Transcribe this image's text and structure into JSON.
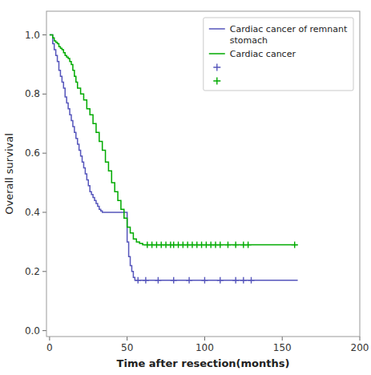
{
  "chart_data": {
    "type": "step",
    "xlabel": "Time after resection(months)",
    "ylabel": "Overall survival",
    "xlim": [
      -2,
      200
    ],
    "ylim": [
      -0.02,
      1.08
    ],
    "xticks": [
      0,
      50,
      100,
      150,
      200
    ],
    "yticks": [
      {
        "value": 0.0,
        "label": "0.0"
      },
      0.2,
      0.4,
      0.6,
      0.8,
      {
        "value": 1.0,
        "label": "1.0"
      }
    ],
    "grid": false,
    "legend": "upper right",
    "series": [
      {
        "name": "Cardiac cancer of remnant\nstomach",
        "type": "step",
        "color": "#5555bb",
        "x": [
          0,
          2,
          3,
          4,
          5,
          6,
          7,
          8,
          9,
          10,
          11,
          12,
          13,
          14,
          15,
          16,
          17,
          18,
          19,
          20,
          21,
          22,
          23,
          24,
          25,
          26,
          27,
          28,
          29,
          30,
          31,
          32,
          33,
          34,
          35,
          36,
          37,
          38,
          39,
          40,
          41,
          42,
          43,
          44,
          45,
          46,
          47,
          48,
          49,
          50,
          51,
          52,
          53,
          54,
          55,
          56,
          160
        ],
        "values": [
          1.0,
          0.97,
          0.95,
          0.93,
          0.91,
          0.88,
          0.86,
          0.84,
          0.82,
          0.79,
          0.77,
          0.75,
          0.73,
          0.71,
          0.69,
          0.67,
          0.65,
          0.63,
          0.61,
          0.59,
          0.57,
          0.55,
          0.53,
          0.51,
          0.49,
          0.47,
          0.46,
          0.45,
          0.44,
          0.43,
          0.42,
          0.41,
          0.405,
          0.4,
          0.4,
          0.4,
          0.4,
          0.4,
          0.4,
          0.4,
          0.4,
          0.4,
          0.4,
          0.4,
          0.4,
          0.4,
          0.4,
          0.4,
          0.4,
          0.3,
          0.25,
          0.22,
          0.2,
          0.18,
          0.17,
          0.17,
          0.17
        ]
      },
      {
        "name": "Cardiac cancer",
        "type": "step",
        "color": "#00aa00",
        "x": [
          0,
          2,
          3,
          4,
          5,
          6,
          7,
          8,
          9,
          10,
          11,
          12,
          13,
          14,
          15,
          16,
          17,
          18,
          20,
          22,
          24,
          26,
          28,
          30,
          32,
          34,
          36,
          38,
          40,
          42,
          44,
          46,
          48,
          50,
          52,
          54,
          56,
          58,
          60,
          62,
          160
        ],
        "values": [
          1.0,
          0.99,
          0.98,
          0.975,
          0.97,
          0.96,
          0.955,
          0.95,
          0.94,
          0.93,
          0.925,
          0.92,
          0.91,
          0.9,
          0.88,
          0.86,
          0.84,
          0.82,
          0.8,
          0.78,
          0.75,
          0.73,
          0.7,
          0.67,
          0.64,
          0.61,
          0.57,
          0.54,
          0.5,
          0.47,
          0.44,
          0.41,
          0.38,
          0.35,
          0.33,
          0.31,
          0.3,
          0.295,
          0.29,
          0.29,
          0.29
        ]
      },
      {
        "type": "scatter",
        "marker": "plus",
        "color": "#5555bb",
        "x": [
          57,
          62,
          70,
          80,
          90,
          100,
          110,
          120,
          125,
          130
        ],
        "values": [
          0.17,
          0.17,
          0.17,
          0.17,
          0.17,
          0.17,
          0.17,
          0.17,
          0.17,
          0.17
        ]
      },
      {
        "type": "scatter",
        "marker": "plus",
        "color": "#00aa00",
        "x": [
          63,
          66,
          69,
          72,
          75,
          78,
          80,
          83,
          86,
          89,
          92,
          95,
          98,
          101,
          104,
          107,
          110,
          115,
          120,
          125,
          128,
          158
        ],
        "values": [
          0.29,
          0.29,
          0.29,
          0.29,
          0.29,
          0.29,
          0.29,
          0.29,
          0.29,
          0.29,
          0.29,
          0.29,
          0.29,
          0.29,
          0.29,
          0.29,
          0.29,
          0.29,
          0.29,
          0.29,
          0.29,
          0.29
        ]
      }
    ]
  }
}
